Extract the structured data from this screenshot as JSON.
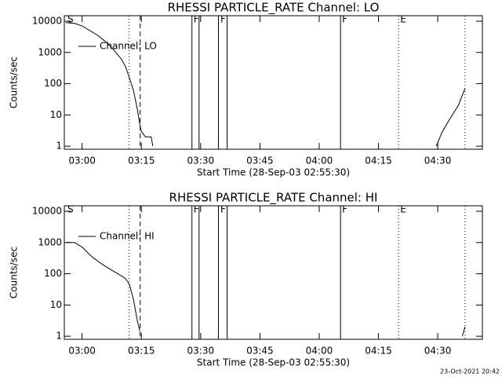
{
  "chart_data": [
    {
      "type": "line",
      "title": "RHESSI PARTICLE_RATE Channel: LO",
      "xlabel": "Start Time (28-Sep-03 02:55:30)",
      "ylabel": "Counts/sec",
      "log_y": true,
      "legend": "upper left",
      "xlim": [
        175.5,
        281.3
      ],
      "ylim": [
        0.8,
        15000
      ],
      "xticks": [
        {
          "value": 180,
          "label": "03:00"
        },
        {
          "value": 195,
          "label": "03:15"
        },
        {
          "value": 210,
          "label": "03:30"
        },
        {
          "value": 225,
          "label": "03:45"
        },
        {
          "value": 240,
          "label": "04:00"
        },
        {
          "value": 255,
          "label": "04:15"
        },
        {
          "value": 270,
          "label": "04:30"
        }
      ],
      "yticks": [
        1,
        10,
        100,
        1000,
        10000
      ],
      "series": [
        {
          "name": "Channel: LO",
          "color": "#000000",
          "x": [
            175.9,
            178.1,
            180.1,
            182.0,
            184.0,
            186.0,
            188.0,
            190.0,
            191.0,
            192.0,
            193.0,
            194.0,
            194.6,
            195.0,
            196.0,
            197.5,
            197.9,
            230,
            269.6,
            271.2,
            273.2,
            275.2,
            276.9
          ],
          "values": [
            9000,
            8500,
            7000,
            5000,
            3500,
            2200,
            1200,
            600,
            350,
            150,
            60,
            15,
            5,
            3,
            2,
            2,
            1,
            null,
            1,
            3,
            8,
            20,
            70
          ]
        }
      ],
      "vlines": [
        {
          "x": 191.9,
          "style": "dotted"
        },
        {
          "x": 194.7,
          "style": "dashed"
        },
        {
          "x": 207.8,
          "style": "solid"
        },
        {
          "x": 209.6,
          "style": "solid"
        },
        {
          "x": 214.5,
          "style": "solid"
        },
        {
          "x": 216.7,
          "style": "solid"
        },
        {
          "x": 245.4,
          "style": "solid"
        },
        {
          "x": 260.1,
          "style": "dotted"
        },
        {
          "x": 276.9,
          "style": "dotted"
        }
      ],
      "annotations": [
        {
          "x": 176.3,
          "text": "S"
        },
        {
          "x": 208.2,
          "text": "F"
        },
        {
          "x": 215.0,
          "text": "F"
        },
        {
          "x": 245.8,
          "text": "F"
        },
        {
          "x": 260.5,
          "text": "E"
        }
      ]
    },
    {
      "type": "line",
      "title": "RHESSI PARTICLE_RATE Channel: HI",
      "xlabel": "Start Time (28-Sep-03 02:55:30)",
      "ylabel": "Counts/sec",
      "log_y": true,
      "legend": "upper left",
      "xlim": [
        175.5,
        281.3
      ],
      "ylim": [
        0.8,
        15000
      ],
      "xticks": [
        {
          "value": 180,
          "label": "03:00"
        },
        {
          "value": 195,
          "label": "03:15"
        },
        {
          "value": 210,
          "label": "03:30"
        },
        {
          "value": 225,
          "label": "03:45"
        },
        {
          "value": 240,
          "label": "04:00"
        },
        {
          "value": 255,
          "label": "04:15"
        },
        {
          "value": 270,
          "label": "04:30"
        }
      ],
      "yticks": [
        1,
        10,
        100,
        1000,
        10000
      ],
      "series": [
        {
          "name": "Channel: HI",
          "color": "#000000",
          "x": [
            175.9,
            178.1,
            180.1,
            182.0,
            184.0,
            186.0,
            188.0,
            190.0,
            191.0,
            192.0,
            193.0,
            194.0,
            194.6,
            230,
            276.2,
            276.9
          ],
          "values": [
            1000,
            1000,
            700,
            400,
            250,
            170,
            120,
            85,
            70,
            45,
            15,
            3,
            1.5,
            null,
            1,
            2
          ]
        }
      ],
      "vlines": [
        {
          "x": 191.9,
          "style": "dotted"
        },
        {
          "x": 194.7,
          "style": "dashed"
        },
        {
          "x": 207.8,
          "style": "solid"
        },
        {
          "x": 209.6,
          "style": "solid"
        },
        {
          "x": 214.5,
          "style": "solid"
        },
        {
          "x": 216.7,
          "style": "solid"
        },
        {
          "x": 245.4,
          "style": "solid"
        },
        {
          "x": 260.1,
          "style": "dotted"
        },
        {
          "x": 276.9,
          "style": "dotted"
        }
      ],
      "annotations": [
        {
          "x": 176.3,
          "text": "S"
        },
        {
          "x": 208.2,
          "text": "F"
        },
        {
          "x": 215.0,
          "text": "F"
        },
        {
          "x": 245.8,
          "text": "F"
        },
        {
          "x": 260.5,
          "text": "E"
        }
      ]
    }
  ],
  "footer": "23-Oct-2021 20:42"
}
